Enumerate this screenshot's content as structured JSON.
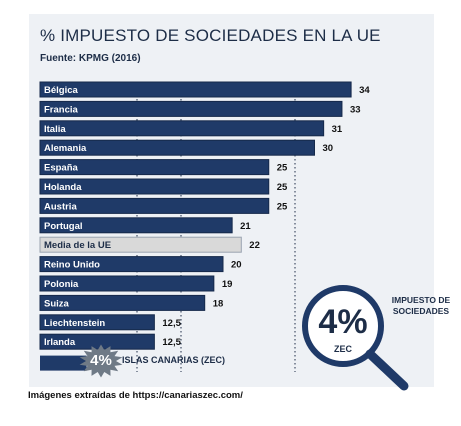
{
  "title": "% IMPUESTO DE SOCIEDADES EN LA UE",
  "source": "Fuente: KPMG (2016)",
  "footer": "Imágenes extraídas de https://canariaszec.com/",
  "badge": {
    "label": "IMPUESTO DE SOCIEDADES",
    "value": "4%",
    "sub": "ZEC"
  },
  "canarias": {
    "value": "4%",
    "label": "ISLAS CANARIAS (ZEC)"
  },
  "colors": {
    "bar": "#1f3a68",
    "highlight_bar": "#d9d9d9",
    "text": "#1d2d47"
  },
  "chart_data": {
    "type": "bar",
    "orientation": "horizontal",
    "categories": [
      "Bélgica",
      "Francia",
      "Italia",
      "Alemania",
      "España",
      "Holanda",
      "Austria",
      "Portugal",
      "Media de la UE",
      "Reino Unido",
      "Polonia",
      "Suiza",
      "Liechtenstein",
      "Irlanda"
    ],
    "values": [
      34,
      33,
      31,
      30,
      25,
      25,
      25,
      21,
      22,
      20,
      19,
      18,
      12.5,
      12.5
    ],
    "value_labels": [
      "34",
      "33",
      "31",
      "30",
      "25",
      "25",
      "25",
      "21",
      "22",
      "20",
      "19",
      "18",
      "12,5",
      "12,5"
    ],
    "highlight": "Media de la UE"
  }
}
